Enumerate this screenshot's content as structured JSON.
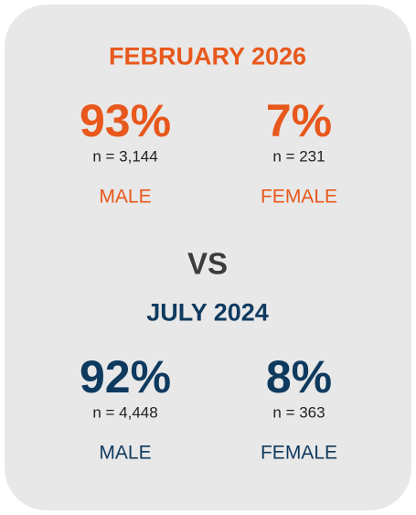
{
  "sections": [
    {
      "title": "FEBRUARY 2026",
      "items": [
        {
          "percent": "93%",
          "n": "n = 3,144",
          "label": "MALE"
        },
        {
          "percent": "7%",
          "n": "n = 231",
          "label": "FEMALE"
        }
      ]
    },
    {
      "title": "JULY 2024",
      "items": [
        {
          "percent": "92%",
          "n": "n = 4,448",
          "label": "MALE"
        },
        {
          "percent": "8%",
          "n": "n = 363",
          "label": "FEMALE"
        }
      ]
    }
  ],
  "separator": "VS"
}
